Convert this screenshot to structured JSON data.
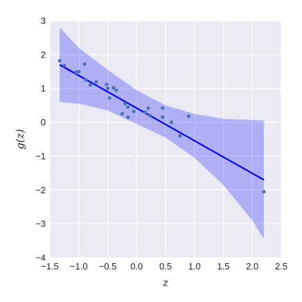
{
  "chart_data": {
    "type": "scatter",
    "title": "",
    "xlabel": "z",
    "ylabel": "g(z)",
    "xlim": [
      -1.5,
      2.5
    ],
    "ylim": [
      -4,
      3
    ],
    "xticks": [
      -1.5,
      -1.0,
      -0.5,
      0.0,
      0.5,
      1.0,
      1.5,
      2.0,
      2.5
    ],
    "xtick_labels": [
      "−1.5",
      "−1.0",
      "−0.5",
      "0.0",
      "0.5",
      "1.0",
      "1.5",
      "2.0",
      "2.5"
    ],
    "yticks": [
      3,
      2,
      1,
      0,
      -1,
      -2,
      -3,
      -4
    ],
    "ytick_labels": [
      "3",
      "2",
      "1",
      "0",
      "−1",
      "−2",
      "−3",
      "−4"
    ],
    "grid": true,
    "background": "#eaeaf2",
    "colors": {
      "points": "#4c72b0",
      "fit_line": "#0000ff",
      "band": "#0000ff"
    },
    "points": [
      {
        "x": -1.33,
        "y": 1.82
      },
      {
        "x": -1.25,
        "y": 1.68
      },
      {
        "x": -1.05,
        "y": 1.48
      },
      {
        "x": -1.0,
        "y": 1.5
      },
      {
        "x": -0.9,
        "y": 1.72
      },
      {
        "x": -0.88,
        "y": 1.25
      },
      {
        "x": -0.8,
        "y": 1.1
      },
      {
        "x": -0.7,
        "y": 1.2
      },
      {
        "x": -0.52,
        "y": 1.12
      },
      {
        "x": -0.5,
        "y": 1.0
      },
      {
        "x": -0.47,
        "y": 0.72
      },
      {
        "x": -0.4,
        "y": 1.02
      },
      {
        "x": -0.35,
        "y": 0.95
      },
      {
        "x": -0.25,
        "y": 0.25
      },
      {
        "x": -0.2,
        "y": 0.55
      },
      {
        "x": -0.15,
        "y": 0.45
      },
      {
        "x": -0.15,
        "y": 0.15
      },
      {
        "x": -0.05,
        "y": 0.32
      },
      {
        "x": 0.15,
        "y": 0.3
      },
      {
        "x": 0.2,
        "y": 0.42
      },
      {
        "x": 0.23,
        "y": 0.2
      },
      {
        "x": 0.45,
        "y": 0.42
      },
      {
        "x": 0.45,
        "y": 0.15
      },
      {
        "x": 0.6,
        "y": 0.0
      },
      {
        "x": 0.75,
        "y": -0.4
      },
      {
        "x": 0.9,
        "y": 0.18
      },
      {
        "x": 2.2,
        "y": -2.05
      }
    ],
    "fit_line": {
      "x": [
        -1.33,
        2.2
      ],
      "y": [
        1.7,
        -1.7
      ]
    },
    "band": {
      "x": [
        -1.33,
        -1.0,
        -0.5,
        0.0,
        0.5,
        1.0,
        1.5,
        2.0,
        2.2
      ],
      "upper": [
        2.8,
        2.2,
        1.55,
        0.95,
        0.5,
        0.25,
        0.1,
        0.07,
        0.05
      ],
      "lower": [
        0.6,
        0.55,
        0.35,
        -0.05,
        -0.45,
        -1.05,
        -1.85,
        -2.9,
        -3.45
      ]
    }
  }
}
